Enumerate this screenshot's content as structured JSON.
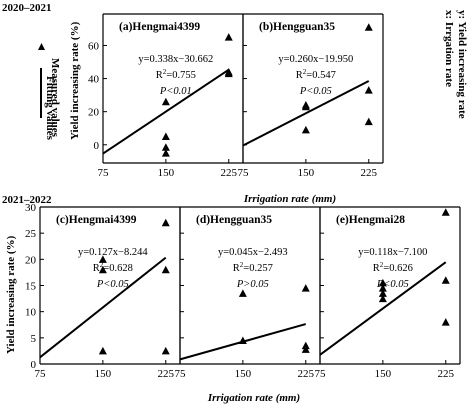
{
  "period_labels": [
    "2020–2021",
    "2021–2022"
  ],
  "side_legend": {
    "marker_label": "Measured values",
    "line_label": "Fitting values"
  },
  "right_note": {
    "line1": "y: Yield increasing rate",
    "line2": "x: Irrgation rate"
  },
  "chart_data": [
    {
      "type": "scatter",
      "panel": "(a)Hengmai4399",
      "period": "2020–2021",
      "ylabel": "Yield increasing rate (%)",
      "xlabel": "",
      "x_ticks": [
        75,
        150,
        225
      ],
      "y_ticks": [
        0,
        20,
        40,
        60
      ],
      "xlim": [
        75,
        242
      ],
      "ylim": [
        -11,
        79
      ],
      "points": [
        [
          150,
          26
        ],
        [
          150,
          5
        ],
        [
          150,
          -1.5
        ],
        [
          150,
          -5
        ],
        [
          225,
          65
        ],
        [
          225,
          44
        ],
        [
          225,
          43
        ]
      ],
      "fit": {
        "slope": 0.338,
        "intercept": -30.662,
        "x_range": [
          75,
          225
        ]
      },
      "equation": "y=0.338x−30.662",
      "r2": "0.755",
      "p": "0.01",
      "p_prefix": "P<"
    },
    {
      "type": "scatter",
      "panel": "(b)Hengguan35",
      "period": "2020–2021",
      "x_ticks": [
        75,
        150,
        225
      ],
      "xlim": [
        75,
        242
      ],
      "ylim": [
        -11,
        79
      ],
      "points": [
        [
          150,
          24
        ],
        [
          150,
          23
        ],
        [
          150,
          9
        ],
        [
          225,
          71
        ],
        [
          225,
          33
        ],
        [
          225,
          14
        ]
      ],
      "fit": {
        "slope": 0.26,
        "intercept": -19.95,
        "x_range": [
          75,
          225
        ]
      },
      "equation": "y=0.260x−19.950",
      "r2": "0.547",
      "p": "0.05",
      "p_prefix": "P<"
    },
    {
      "type": "scatter",
      "panel": "(c)Hengmai4399",
      "period": "2021–2022",
      "ylabel": "Yield increasing rate (%)",
      "x_ticks": [
        75,
        150,
        225
      ],
      "y_ticks": [
        0,
        5,
        10,
        15,
        20,
        25,
        30
      ],
      "xlim": [
        75,
        242
      ],
      "ylim": [
        0,
        30
      ],
      "points": [
        [
          150,
          20
        ],
        [
          150,
          18
        ],
        [
          150,
          2.5
        ],
        [
          225,
          27
        ],
        [
          225,
          18
        ],
        [
          225,
          2.5
        ]
      ],
      "fit": {
        "slope": 0.127,
        "intercept": -8.244,
        "x_range": [
          75,
          225
        ]
      },
      "equation": "y=0.127x−8.244",
      "r2": "0.628",
      "p": "0.05",
      "p_prefix": "P<"
    },
    {
      "type": "scatter",
      "panel": "(d)Hengguan35",
      "period": "2021–2022",
      "x_ticks": [
        75,
        150,
        225
      ],
      "xlim": [
        75,
        242
      ],
      "ylim": [
        0,
        30
      ],
      "points": [
        [
          150,
          13.5
        ],
        [
          150,
          4.5
        ],
        [
          225,
          14.5
        ],
        [
          225,
          3.5
        ],
        [
          225,
          2.8
        ]
      ],
      "fit": {
        "slope": 0.045,
        "intercept": -2.493,
        "x_range": [
          75,
          225
        ]
      },
      "equation": "y=0.045x−2.493",
      "r2": "0.257",
      "p": "0.05",
      "p_prefix": "P>"
    },
    {
      "type": "scatter",
      "panel": "(e)Hengmai28",
      "period": "2021–2022",
      "x_ticks": [
        75,
        150,
        225
      ],
      "xlim": [
        75,
        242
      ],
      "ylim": [
        0,
        30
      ],
      "points": [
        [
          150,
          15.5
        ],
        [
          150,
          14.5
        ],
        [
          150,
          13.5
        ],
        [
          150,
          12.5
        ],
        [
          225,
          29
        ],
        [
          225,
          16
        ],
        [
          225,
          8
        ]
      ],
      "fit": {
        "slope": 0.118,
        "intercept": -7.1,
        "x_range": [
          75,
          225
        ]
      },
      "equation": "y=0.118x−7.100",
      "r2": "0.626",
      "p": "0.05",
      "p_prefix": "P<"
    }
  ],
  "shared_xlabel": "Irrigation rate (mm)"
}
